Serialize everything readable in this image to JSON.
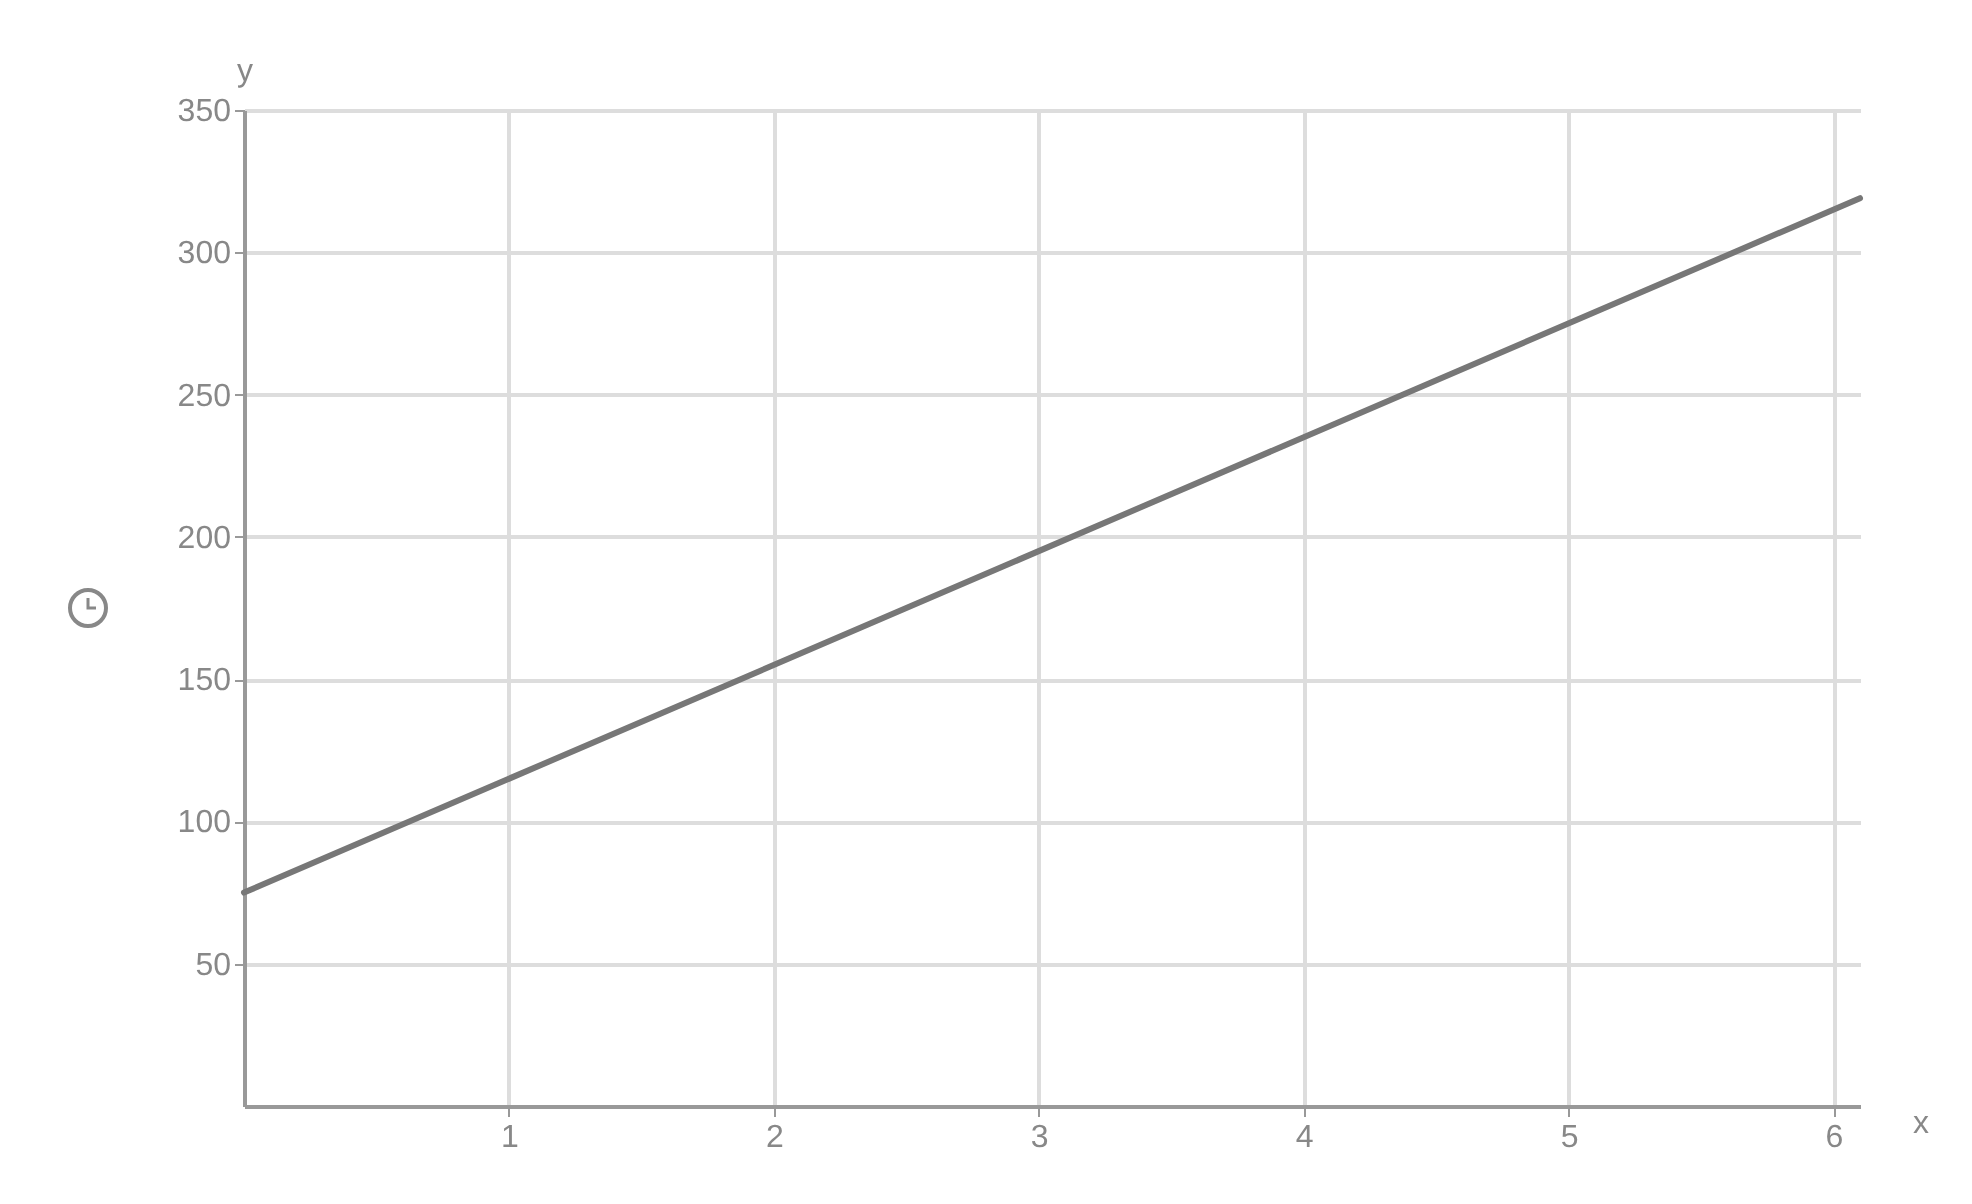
{
  "chart_data": {
    "type": "line",
    "x": [
      0,
      6.1
    ],
    "series": [
      {
        "color": "#777777",
        "values": [
          75,
          319
        ]
      }
    ],
    "xlabel": "x",
    "ylabel": "y",
    "xlim": [
      0,
      6.1
    ],
    "ylim": [
      0,
      350
    ],
    "xticks": [
      1,
      2,
      3,
      4,
      5,
      6
    ],
    "yticks": [
      50,
      100,
      150,
      200,
      250,
      300,
      350
    ],
    "grid": true,
    "marker": "none",
    "line_style": "solid"
  }
}
